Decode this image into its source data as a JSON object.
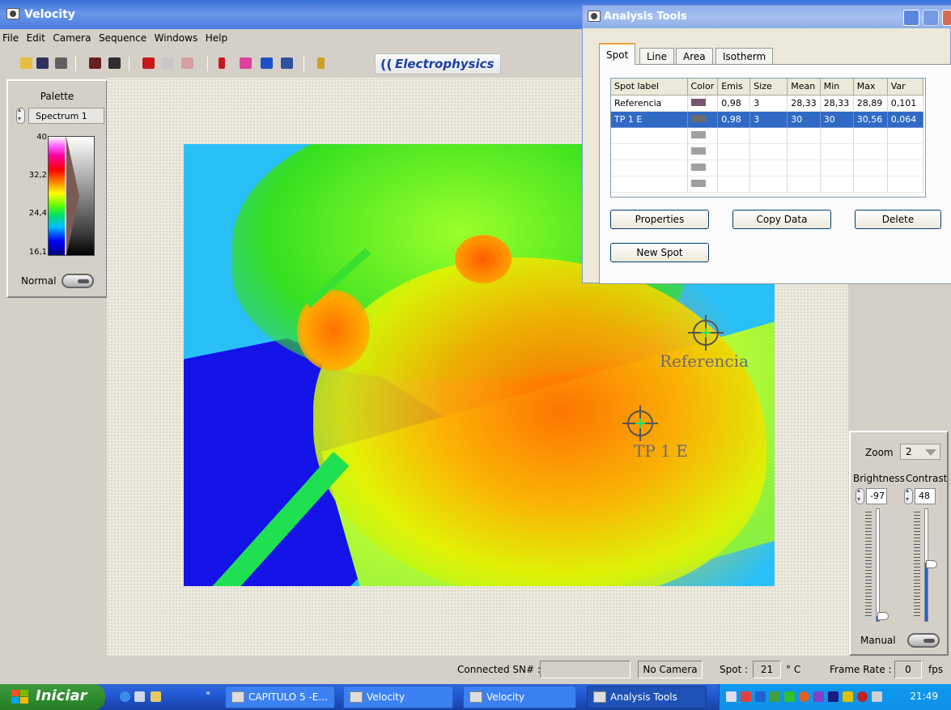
{
  "window": {
    "title": "Velocity"
  },
  "menu": [
    "File",
    "Edit",
    "Camera",
    "Sequence",
    "Windows",
    "Help"
  ],
  "logo": {
    "brand": "Electrophysics"
  },
  "palette": {
    "label": "Palette",
    "selected": "Spectrum 1",
    "ticks": [
      "40",
      "32,2",
      "24,4",
      "16,1"
    ],
    "mode": "Normal"
  },
  "image": {
    "markers": [
      {
        "label": "Referencia"
      },
      {
        "label": "TP 1 E"
      }
    ]
  },
  "controls": {
    "zoom_label": "Zoom",
    "zoom_value": "2",
    "brightness_label": "Brightness",
    "brightness_value": "-97",
    "contrast_label": "Contrast",
    "contrast_value": "48",
    "mode": "Manual"
  },
  "status": {
    "connected_label": "Connected SN# :",
    "connected_value": "",
    "camera": "No Camera",
    "spot_label": "Spot :",
    "spot_value": "21",
    "spot_unit": "° C",
    "framerate_label": "Frame Rate :",
    "framerate_value": "0",
    "framerate_unit": "fps"
  },
  "analysis": {
    "title": "Analysis Tools",
    "tabs": [
      "Spot",
      "Line",
      "Area",
      "Isotherm"
    ],
    "active_tab": "Spot",
    "columns": [
      "Spot label",
      "Color",
      "Emis",
      "Size",
      "Mean",
      "Min",
      "Max",
      "Var"
    ],
    "rows": [
      {
        "label": "Referencia",
        "color": "#7a5470",
        "emis": "0,98",
        "size": "3",
        "mean": "28,33",
        "min": "28,33",
        "max": "28,89",
        "var": "0,101"
      },
      {
        "label": "TP 1 E",
        "color": "#6b6b6b",
        "emis": "0,98",
        "size": "3",
        "mean": "30",
        "min": "30",
        "max": "30,56",
        "var": "0,064"
      }
    ],
    "empty_row_color": "#a0a0a0",
    "buttons": {
      "properties": "Properties",
      "copy": "Copy Data",
      "delete": "Delete",
      "new_spot": "New Spot"
    }
  },
  "taskbar": {
    "start": "Iniciar",
    "tasks": [
      {
        "label": "CAPITULO 5 -E..."
      },
      {
        "label": "Velocity"
      },
      {
        "label": "Velocity"
      },
      {
        "label": "Analysis Tools"
      }
    ],
    "clock": "21:49"
  }
}
